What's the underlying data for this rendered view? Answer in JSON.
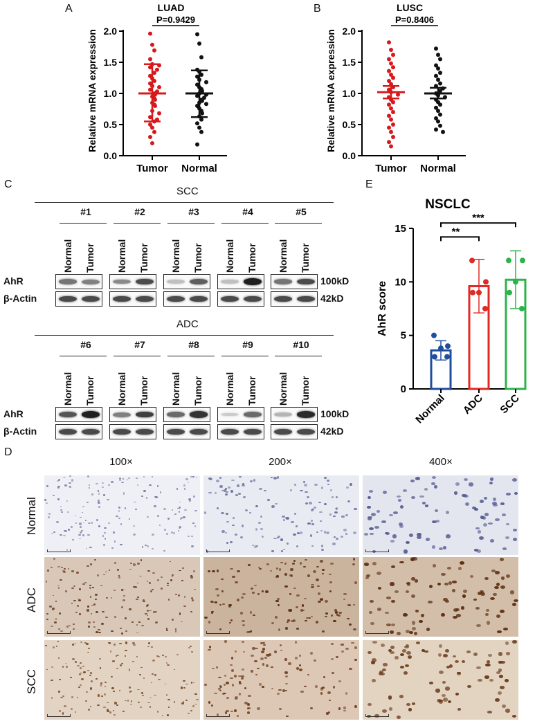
{
  "panel_labels": {
    "a": "A",
    "b": "B",
    "c": "C",
    "d": "D",
    "e": "E"
  },
  "chart_data": [
    {
      "id": "A",
      "type": "scatter",
      "title": "LUAD",
      "ylabel": "Relative mRNA expression",
      "categories": [
        "Tumor",
        "Normal"
      ],
      "ylim": [
        0,
        2.0
      ],
      "yticks": [
        0.0,
        0.5,
        1.0,
        1.5,
        2.0
      ],
      "annotation": "P=0.9429",
      "series": [
        {
          "category": "Tumor",
          "color": "#d7191c",
          "mean": 1.0,
          "sd_low": 0.55,
          "sd_high": 1.47,
          "values": [
            1.96,
            1.78,
            1.69,
            1.55,
            1.47,
            1.45,
            1.42,
            1.38,
            1.33,
            1.28,
            1.24,
            1.2,
            1.16,
            1.12,
            1.1,
            1.06,
            1.03,
            1.0,
            0.98,
            0.95,
            0.92,
            0.9,
            0.85,
            0.82,
            0.8,
            0.72,
            0.68,
            0.62,
            0.58,
            0.55,
            0.5,
            0.45,
            0.38,
            0.3,
            0.2
          ]
        },
        {
          "category": "Normal",
          "color": "#111111",
          "mean": 1.0,
          "sd_low": 0.62,
          "sd_high": 1.37,
          "values": [
            1.95,
            1.8,
            1.58,
            1.38,
            1.35,
            1.3,
            1.27,
            1.22,
            1.18,
            1.14,
            1.1,
            1.07,
            1.04,
            1.0,
            0.98,
            0.96,
            0.93,
            0.9,
            0.88,
            0.85,
            0.83,
            0.8,
            0.76,
            0.72,
            0.68,
            0.63,
            0.58,
            0.52,
            0.45,
            0.38,
            0.18
          ]
        }
      ]
    },
    {
      "id": "B",
      "type": "scatter",
      "title": "LUSC",
      "ylabel": "Relative mRNA expression",
      "categories": [
        "Tumor",
        "Normal"
      ],
      "ylim": [
        0,
        2.0
      ],
      "yticks": [
        0.0,
        0.5,
        1.0,
        1.5,
        2.0
      ],
      "annotation": "P=0.8406",
      "series": [
        {
          "category": "Tumor",
          "color": "#d7191c",
          "mean": 1.02,
          "sd_low": 0.92,
          "sd_high": 1.12,
          "values": [
            1.82,
            1.7,
            1.62,
            1.55,
            1.48,
            1.42,
            1.36,
            1.3,
            1.25,
            1.2,
            1.15,
            1.1,
            1.06,
            1.02,
            0.98,
            0.94,
            0.9,
            0.86,
            0.82,
            0.76,
            0.7,
            0.64,
            0.58,
            0.5,
            0.45,
            0.38,
            0.3,
            0.22,
            0.15
          ]
        },
        {
          "category": "Normal",
          "color": "#111111",
          "mean": 1.0,
          "sd_low": 0.92,
          "sd_high": 1.09,
          "values": [
            1.72,
            1.62,
            1.55,
            1.45,
            1.4,
            1.33,
            1.28,
            1.22,
            1.16,
            1.12,
            1.08,
            1.04,
            1.0,
            0.97,
            0.94,
            0.9,
            0.86,
            0.82,
            0.77,
            0.72,
            0.66,
            0.6,
            0.55,
            0.48,
            0.42,
            0.38
          ]
        }
      ]
    },
    {
      "id": "E",
      "type": "bar",
      "title": "NSCLC",
      "ylabel": "AhR score",
      "categories": [
        "Normal",
        "ADC",
        "SCC"
      ],
      "ylim": [
        0,
        15
      ],
      "yticks": [
        0,
        5,
        10,
        15
      ],
      "series": [
        {
          "category": "Normal",
          "color": "#1f4e9c",
          "mean": 3.6,
          "sd": 0.9,
          "points": [
            5,
            4,
            3.8,
            3,
            3
          ]
        },
        {
          "category": "ADC",
          "color": "#e02a23",
          "mean": 9.6,
          "sd": 2.5,
          "points": [
            12,
            10,
            9,
            9,
            7.5
          ]
        },
        {
          "category": "SCC",
          "color": "#2db34a",
          "mean": 10.2,
          "sd": 2.7,
          "points": [
            12,
            12,
            10,
            9,
            7.5
          ]
        }
      ],
      "significance": [
        {
          "from": "Normal",
          "to": "ADC",
          "label": "**"
        },
        {
          "from": "Normal",
          "to": "SCC",
          "label": "***"
        }
      ]
    }
  ],
  "western": {
    "groups": [
      {
        "title": "SCC",
        "samples": [
          "#1",
          "#2",
          "#3",
          "#4",
          "#5"
        ]
      },
      {
        "title": "ADC",
        "samples": [
          "#6",
          "#7",
          "#8",
          "#9",
          "#10"
        ]
      }
    ],
    "lanes": [
      "Normal",
      "Tumor"
    ],
    "rows": [
      {
        "name": "AhR",
        "size": "100kD"
      },
      {
        "name": "β-Actin",
        "size": "42kD"
      }
    ],
    "ahr_intensity": [
      [
        0.55,
        0.5
      ],
      [
        0.45,
        0.75
      ],
      [
        0.2,
        0.65
      ],
      [
        0.2,
        0.95
      ],
      [
        0.55,
        0.75
      ],
      [
        0.7,
        0.95
      ],
      [
        0.5,
        0.8
      ],
      [
        0.6,
        0.85
      ],
      [
        0.15,
        0.6
      ],
      [
        0.25,
        0.9
      ]
    ]
  },
  "ihc": {
    "magnifications": [
      "100×",
      "200×",
      "400×"
    ],
    "rows": [
      "Normal",
      "ADC",
      "SCC"
    ]
  }
}
